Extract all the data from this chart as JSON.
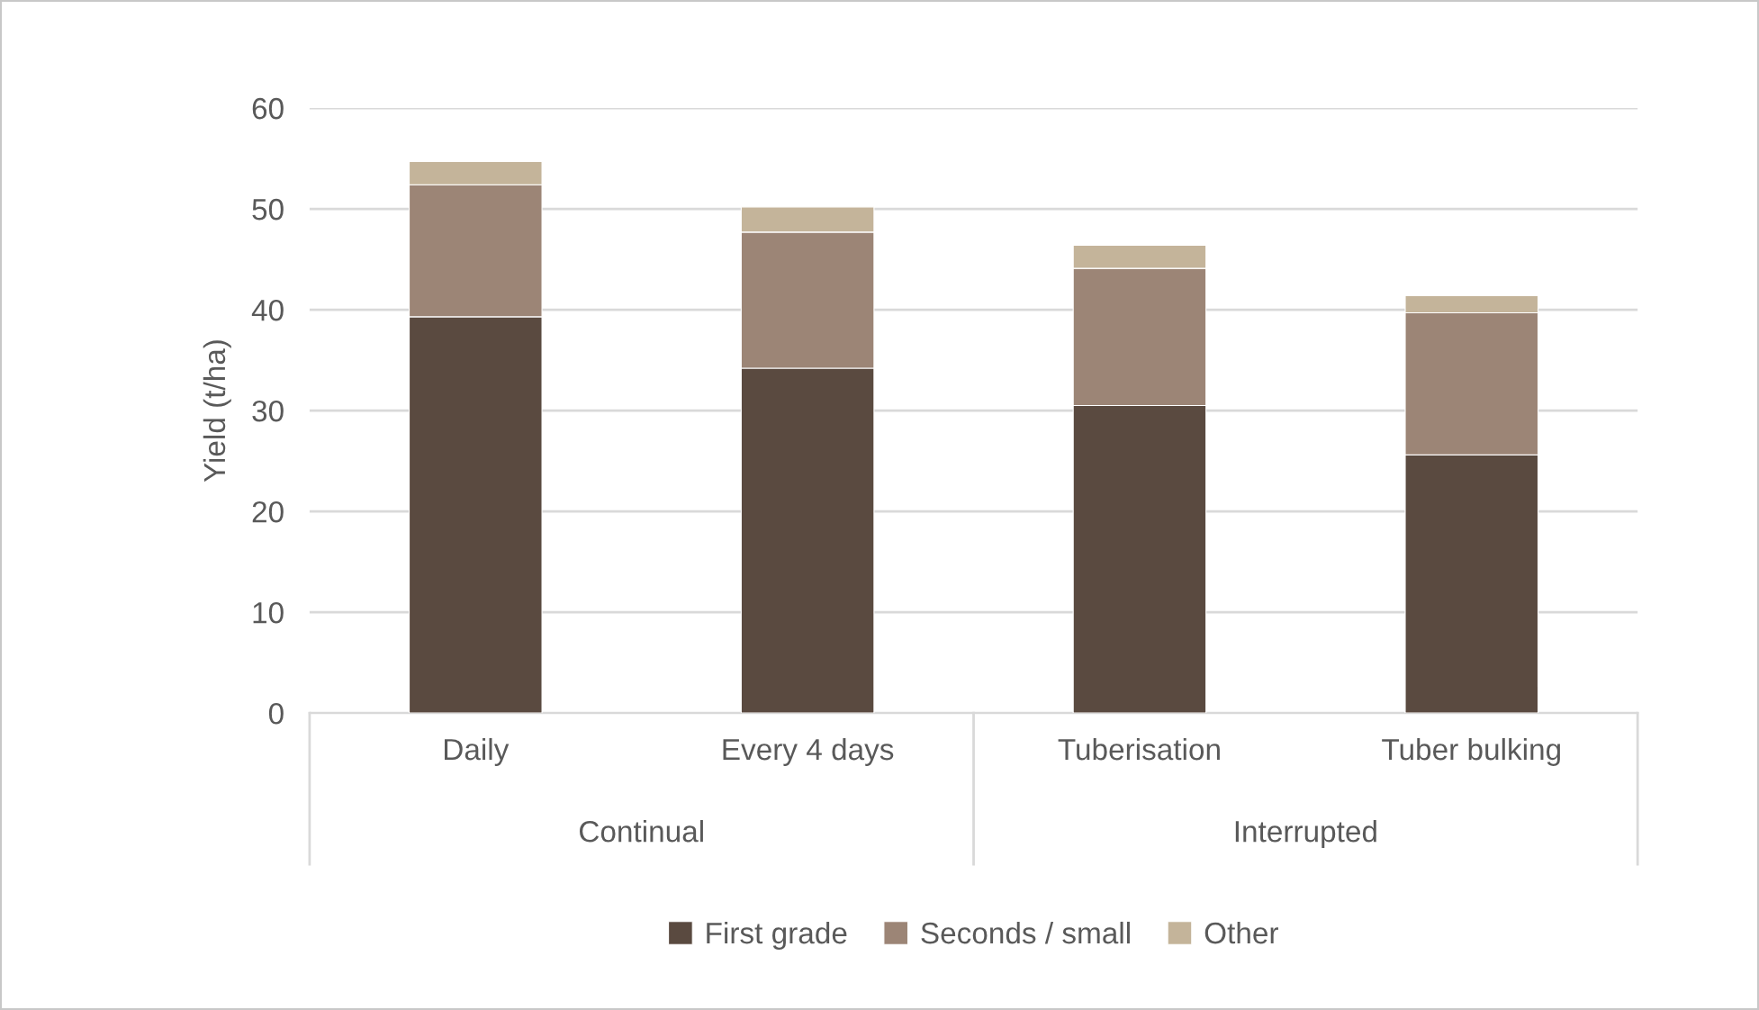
{
  "chart_data": {
    "type": "bar",
    "stacked": true,
    "ylabel": "Yield (t/ha)",
    "categories": [
      "Daily",
      "Every 4 days",
      "Tuberisation",
      "Tuber bulking"
    ],
    "annotations": [
      "Continual",
      "Interrupted"
    ],
    "series": [
      {
        "name": "First grade",
        "color": "#5a4a40",
        "values": [
          39.3,
          34.2,
          30.5,
          25.6
        ]
      },
      {
        "name": "Seconds / small",
        "color": "#9c8576",
        "values": [
          13.1,
          13.5,
          13.6,
          14.1
        ]
      },
      {
        "name": "Other",
        "color": "#c4b49a",
        "values": [
          2.3,
          2.5,
          2.3,
          1.7
        ]
      }
    ],
    "ylim": [
      0,
      60
    ],
    "yticks": [
      0,
      10,
      20,
      30,
      40,
      50,
      60
    ],
    "grid": "y",
    "legend": "bottom"
  }
}
